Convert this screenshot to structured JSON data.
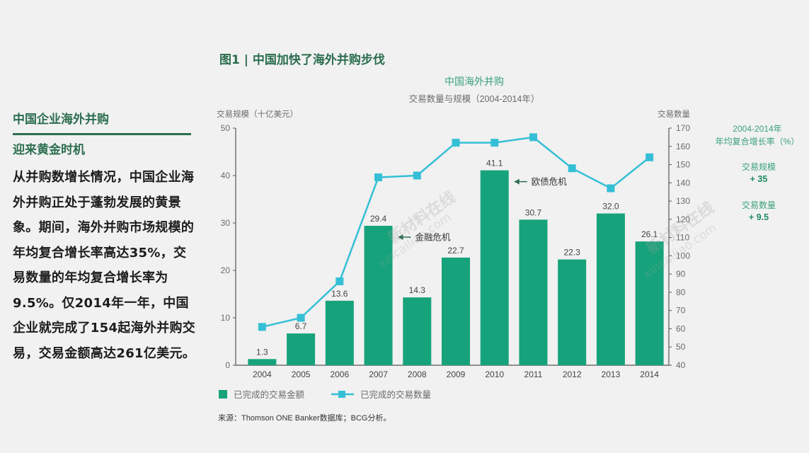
{
  "left_panel": {
    "title": "中国企业海外并购",
    "subtitle": "迎来黄金时机",
    "body": "从并购数增长情况，中国企业海外并购正处于蓬勃发展的黄景象。期间，海外并购市场规模的年均复合增长率高达35%，交易数量的年均复合增长率为9.5%。仅2014年一年，中国企业就完成了154起海外并购交易，交易金额高达261亿美元。"
  },
  "figure_title": "图1 | 中国加快了海外并购步伐",
  "watermarks": [
    "新材料在线",
    "xincailiao.com",
    "新材料在线",
    "xincailiao.com"
  ],
  "chart_data": {
    "type": "bar+line",
    "title": "中国海外并购",
    "subtitle": "交易数量与规模（2004-2014年）",
    "ylabel_left": "交易规模（十亿美元）",
    "ylabel_right": "交易数量",
    "ylim_left": [
      0,
      50
    ],
    "ylim_right": [
      40,
      170
    ],
    "yticks_left": [
      "0",
      "10",
      "20",
      "30",
      "40",
      "50"
    ],
    "yticks_right": [
      "40",
      "50",
      "60",
      "70",
      "80",
      "90",
      "100",
      "110",
      "120",
      "130",
      "140",
      "150",
      "160",
      "170"
    ],
    "categories": [
      "2004",
      "2005",
      "2006",
      "2007",
      "2008",
      "2009",
      "2010",
      "2011",
      "2012",
      "2013",
      "2014"
    ],
    "series": [
      {
        "name": "已完成的交易金额",
        "type": "bar",
        "axis": "left",
        "values": [
          1.3,
          6.7,
          13.6,
          29.4,
          14.3,
          22.7,
          41.1,
          30.7,
          22.3,
          32.0,
          26.1
        ],
        "labels": [
          "1.3",
          "6.7",
          "13.6",
          "29.4",
          "14.3",
          "22.7",
          "41.1",
          "30.7",
          "22.3",
          "32.0",
          "26.1"
        ],
        "color": "#16a37b"
      },
      {
        "name": "已完成的交易数量",
        "type": "line",
        "axis": "right",
        "values": [
          61,
          66,
          86,
          143,
          144,
          162,
          162,
          165,
          148,
          137,
          154
        ],
        "color": "#35bfd6"
      }
    ],
    "annotations": [
      {
        "text": "金融危机",
        "index": 3
      },
      {
        "text": "欧债危机",
        "index": 6
      }
    ],
    "cagr_box": {
      "header": "2004-2014年\n年均复合增长率（%）",
      "items": [
        {
          "label": "交易规模",
          "value": "+ 35"
        },
        {
          "label": "交易数量",
          "value": "+ 9.5"
        }
      ]
    },
    "source": "来源：Thomson ONE Banker数据库；BCG分析。",
    "grid": false,
    "legend": "bottom-left"
  }
}
